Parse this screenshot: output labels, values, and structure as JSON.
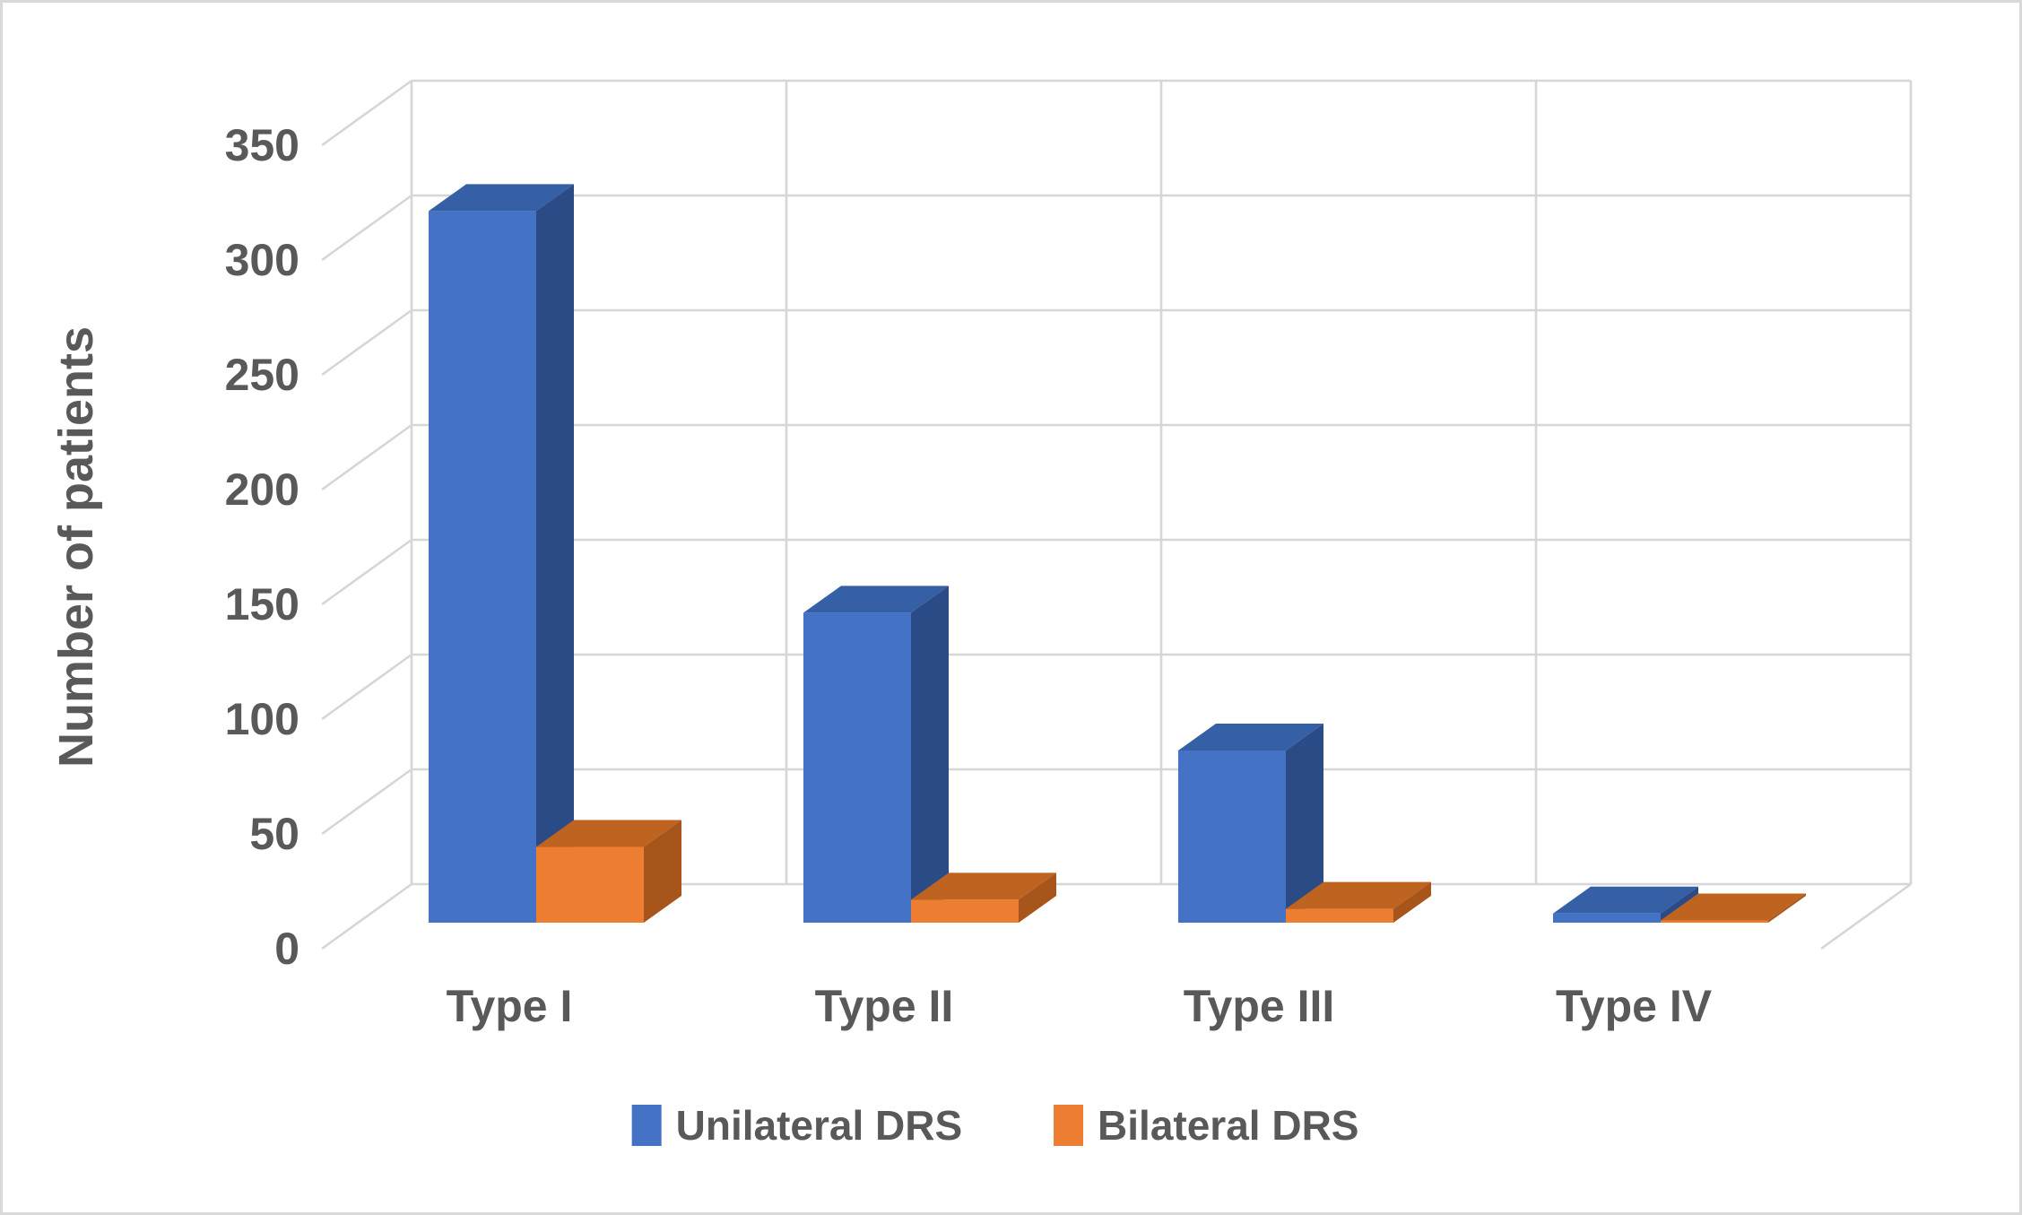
{
  "chart_data": {
    "type": "bar",
    "variant": "3d-clustered-column",
    "title": "",
    "categories": [
      "Type I",
      "Type II",
      "Type III",
      "Type IV"
    ],
    "series": [
      {
        "name": "Unilateral DRS",
        "values": [
          310,
          135,
          75,
          4
        ],
        "colors": {
          "front": "#4472C4",
          "top": "#3560A6",
          "side": "#2B4B87"
        }
      },
      {
        "name": "Bilateral DRS",
        "values": [
          33,
          10,
          6,
          1
        ],
        "colors": {
          "front": "#ED7D31",
          "top": "#BF6321",
          "side": "#A8551C"
        }
      }
    ],
    "xlabel": "",
    "ylabel": "Number of patients",
    "ylim": [
      0,
      350
    ],
    "yticks": [
      0,
      50,
      100,
      150,
      200,
      250,
      300,
      350
    ],
    "grid": true,
    "legend_position": "bottom"
  },
  "style_colors": {
    "gridline": "#D6D6D6",
    "axis_text": "#595959",
    "frame_border": "#D9D9D9",
    "background": "#FFFFFF"
  }
}
